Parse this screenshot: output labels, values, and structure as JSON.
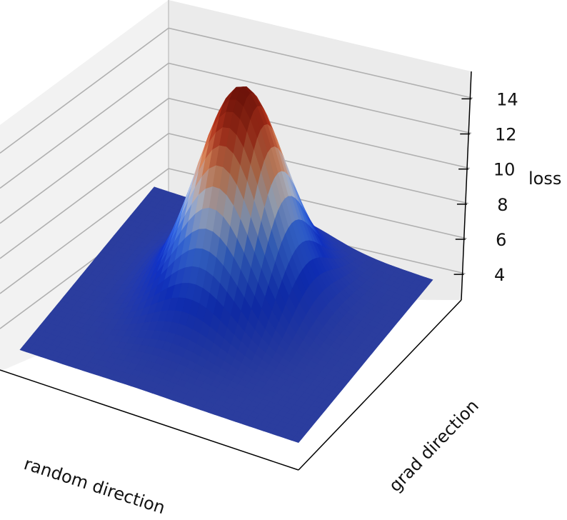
{
  "chart_data": {
    "type": "surface",
    "projection": "3d",
    "xlabel": "random direction",
    "ylabel": "grad direction",
    "zlabel": "loss",
    "zticks": [
      4,
      6,
      8,
      10,
      12,
      14
    ],
    "zlim": [
      2.5,
      15.5
    ],
    "colormap": "coolwarm (blue low, red high)",
    "grid": true,
    "surface": {
      "baseline": 3.0,
      "peak_value": 15.0,
      "description_of_shape": "single smooth Gaussian-like peak on a flat base",
      "grid_resolution": 40
    }
  },
  "colors": {
    "pane_back": "#ebebeb",
    "pane_side": "#f4f4f4",
    "grid_line": "#b0b0b0",
    "axis_line": "#000000",
    "low": "#2a3a9a",
    "mid": "#b8c4d8",
    "high": "#7a1a10"
  }
}
